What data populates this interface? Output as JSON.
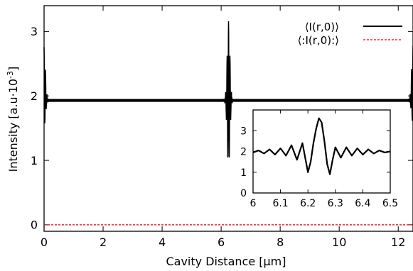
{
  "chart_data": [
    {
      "type": "line",
      "xlabel": "Cavity Distance [µm]",
      "ylabel_parts": [
        "Intensity [a.u·10",
        "-3",
        "]"
      ],
      "xlim": [
        0,
        12.5
      ],
      "ylim": [
        -0.1,
        3.4
      ],
      "x_ticks": [
        0,
        2,
        4,
        6,
        8,
        10,
        12
      ],
      "y_ticks": [
        0,
        1,
        2,
        3
      ],
      "x_tick_labels": [
        "0",
        "2",
        "4",
        "6",
        "8",
        "10",
        "12"
      ],
      "y_tick_labels": [
        "0",
        "1",
        "2",
        "3"
      ],
      "legend_position": "top-right",
      "series": [
        {
          "name": "⟨I(r,0)⟩",
          "color": "#000000",
          "style": "solid",
          "baseline": 1.93,
          "features": [
            {
              "x": 0.0,
              "kind": "edge-peak",
              "max": 2.78,
              "min": 1.5
            },
            {
              "x": 6.25,
              "kind": "central-peak",
              "max": 3.18,
              "min": 0.85
            },
            {
              "x": 12.5,
              "kind": "edge-peak",
              "max": 2.8,
              "min": 1.55
            }
          ]
        },
        {
          "name": "⟨:I(r,0):⟩",
          "color": "#e8000b",
          "style": "dashed",
          "values": [
            [
              0,
              0
            ],
            [
              12.5,
              0
            ]
          ]
        }
      ]
    },
    {
      "type": "line",
      "position": "inset",
      "xlim": [
        6,
        6.5
      ],
      "ylim": [
        0,
        4
      ],
      "x_ticks": [
        6,
        6.1,
        6.2,
        6.3,
        6.4,
        6.5
      ],
      "y_ticks": [
        0,
        1,
        2,
        3
      ],
      "x_tick_labels": [
        "6",
        "6.1",
        "6.2",
        "6.3",
        "6.4",
        "6.5"
      ],
      "y_tick_labels": [
        "0",
        "1",
        "2",
        "3"
      ],
      "series": [
        {
          "color": "#000000",
          "x": [
            6.0,
            6.02,
            6.04,
            6.06,
            6.08,
            6.1,
            6.12,
            6.14,
            6.16,
            6.18,
            6.2,
            6.21,
            6.22,
            6.23,
            6.24,
            6.25,
            6.26,
            6.27,
            6.28,
            6.29,
            6.3,
            6.32,
            6.34,
            6.36,
            6.38,
            6.4,
            6.42,
            6.44,
            6.46,
            6.48,
            6.5
          ],
          "y": [
            1.95,
            2.05,
            1.9,
            2.1,
            1.85,
            2.15,
            1.8,
            2.3,
            1.6,
            2.4,
            1.0,
            1.5,
            2.4,
            3.1,
            3.6,
            3.4,
            2.5,
            1.4,
            0.9,
            1.6,
            2.2,
            1.7,
            2.2,
            1.8,
            2.15,
            1.85,
            2.1,
            1.9,
            2.05,
            1.95,
            2.0
          ]
        }
      ]
    }
  ]
}
